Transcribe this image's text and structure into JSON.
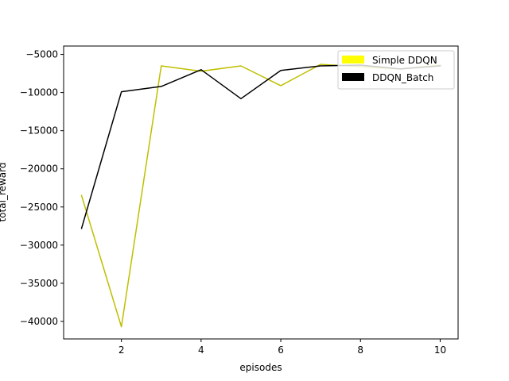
{
  "chart_data": {
    "type": "line",
    "title": "",
    "xlabel": "episodes",
    "ylabel": "total_reward",
    "xlim": [
      0.55,
      10.45
    ],
    "ylim": [
      -42300,
      -3900
    ],
    "grid": false,
    "legend_location": "top-right",
    "x_ticks": [
      2,
      4,
      6,
      8,
      10
    ],
    "y_ticks": [
      -40000,
      -35000,
      -30000,
      -25000,
      -20000,
      -15000,
      -10000,
      -5000
    ],
    "x": [
      1,
      2,
      3,
      4,
      5,
      6,
      7,
      8,
      9,
      10
    ],
    "series": [
      {
        "name": "Simple DDQN",
        "color": "#bfbf00",
        "legend_swatch_color": "#ffff00",
        "values": [
          -23500,
          -40700,
          -6500,
          -7200,
          -6500,
          -9100,
          -6300,
          -6600,
          -6900,
          -6400
        ]
      },
      {
        "name": "DDQN_Batch",
        "color": "#000000",
        "legend_swatch_color": "#000000",
        "values": [
          -27800,
          -9900,
          -9200,
          -7000,
          -10800,
          -7100,
          -6500,
          -6400,
          -6900,
          -6500
        ]
      }
    ]
  }
}
